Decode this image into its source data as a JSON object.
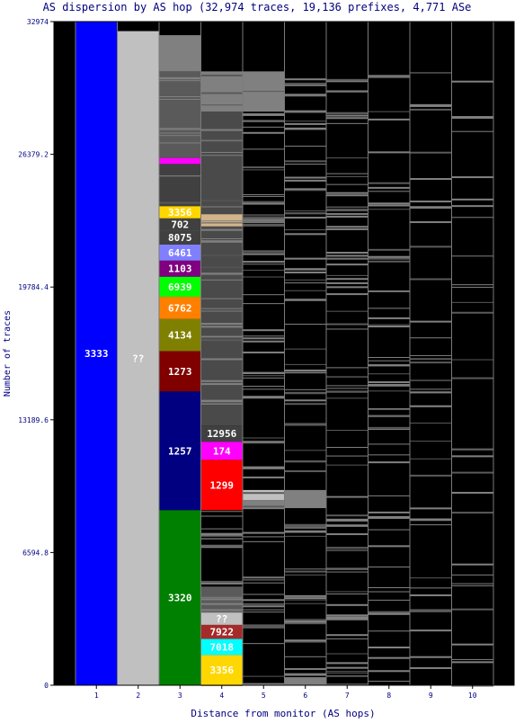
{
  "chart_data": {
    "type": "bar",
    "title": "AS dispersion by AS hop (32,974 traces, 19,136 prefixes, 4,771 ASe",
    "xlabel": "Distance from monitor (AS hops)",
    "ylabel": "Number of traces",
    "ylim": [
      0,
      32974
    ],
    "y_ticks": [
      "0",
      "6594.8",
      "13189.6",
      "19784.4",
      "26379.2",
      "32974"
    ],
    "categories": [
      "1",
      "2",
      "3",
      "4",
      "5",
      "6",
      "7",
      "8",
      "9",
      "10"
    ],
    "background_color": "#000000",
    "labeled_segments": [
      {
        "hop": "1",
        "label": "3333",
        "start": 0,
        "end": 32974,
        "color": "#0000ff"
      },
      {
        "hop": "2",
        "label": "??",
        "start": 0,
        "end": 32500,
        "color": "#c0c0c0"
      },
      {
        "hop": "3",
        "label": "3320",
        "start": 0,
        "end": 8700,
        "color": "#008000"
      },
      {
        "hop": "3",
        "label": "1257",
        "start": 8700,
        "end": 14600,
        "color": "#000080"
      },
      {
        "hop": "3",
        "label": "1273",
        "start": 14600,
        "end": 16600,
        "color": "#800000"
      },
      {
        "hop": "3",
        "label": "4134",
        "start": 16600,
        "end": 18200,
        "color": "#808000"
      },
      {
        "hop": "3",
        "label": "6762",
        "start": 18200,
        "end": 19300,
        "color": "#ff8000"
      },
      {
        "hop": "3",
        "label": "6939",
        "start": 19300,
        "end": 20300,
        "color": "#00ff00"
      },
      {
        "hop": "3",
        "label": "1103",
        "start": 20300,
        "end": 21100,
        "color": "#800080"
      },
      {
        "hop": "3",
        "label": "6461",
        "start": 21100,
        "end": 21900,
        "color": "#8080ff"
      },
      {
        "hop": "3",
        "label": "8075",
        "start": 21900,
        "end": 22600,
        "color": "#404040"
      },
      {
        "hop": "3",
        "label": "702",
        "start": 22600,
        "end": 23200,
        "color": "#404040"
      },
      {
        "hop": "3",
        "label": "3356",
        "start": 23200,
        "end": 23800,
        "color": "#ffd700"
      },
      {
        "hop": "4",
        "label": "3356",
        "start": 0,
        "end": 1500,
        "color": "#ffd700"
      },
      {
        "hop": "4",
        "label": "7018",
        "start": 1500,
        "end": 2300,
        "color": "#00ffff"
      },
      {
        "hop": "4",
        "label": "7922",
        "start": 2300,
        "end": 3000,
        "color": "#a52a2a"
      },
      {
        "hop": "4",
        "label": "??",
        "start": 3000,
        "end": 3600,
        "color": "#c0c0c0"
      },
      {
        "hop": "4",
        "label": "1299",
        "start": 8700,
        "end": 11200,
        "color": "#ff0000"
      },
      {
        "hop": "4",
        "label": "174",
        "start": 11200,
        "end": 12100,
        "color": "#ff00ff"
      },
      {
        "hop": "4",
        "label": "12956",
        "start": 12100,
        "end": 12900,
        "color": "#404040"
      }
    ],
    "unlabeled_segments": [
      {
        "hop": "3",
        "start": 23800,
        "end": 25900,
        "color": "#404040"
      },
      {
        "hop": "3",
        "start": 25900,
        "end": 26200,
        "color": "#ff00ff"
      },
      {
        "hop": "3",
        "start": 26200,
        "end": 30500,
        "color": "#5a5a5a"
      },
      {
        "hop": "3",
        "start": 30500,
        "end": 32300,
        "color": "#808080"
      },
      {
        "hop": "4",
        "start": 3600,
        "end": 4900,
        "color": "#5a5a5a"
      },
      {
        "hop": "4",
        "start": 12900,
        "end": 28500,
        "color": "#4a4a4a"
      },
      {
        "hop": "4",
        "start": 22800,
        "end": 23400,
        "color": "#d2b48c"
      },
      {
        "hop": "4",
        "start": 28500,
        "end": 30500,
        "color": "#808080"
      },
      {
        "hop": "5",
        "start": 8800,
        "end": 9200,
        "color": "#808080"
      },
      {
        "hop": "5",
        "start": 9200,
        "end": 9700,
        "color": "#c0c0c0"
      },
      {
        "hop": "5",
        "start": 28500,
        "end": 30500,
        "color": "#808080"
      },
      {
        "hop": "6",
        "start": 8800,
        "end": 9700,
        "color": "#808080"
      },
      {
        "hop": "6",
        "start": 0,
        "end": 400,
        "color": "#808080"
      }
    ],
    "grid": false,
    "legend": "none"
  }
}
